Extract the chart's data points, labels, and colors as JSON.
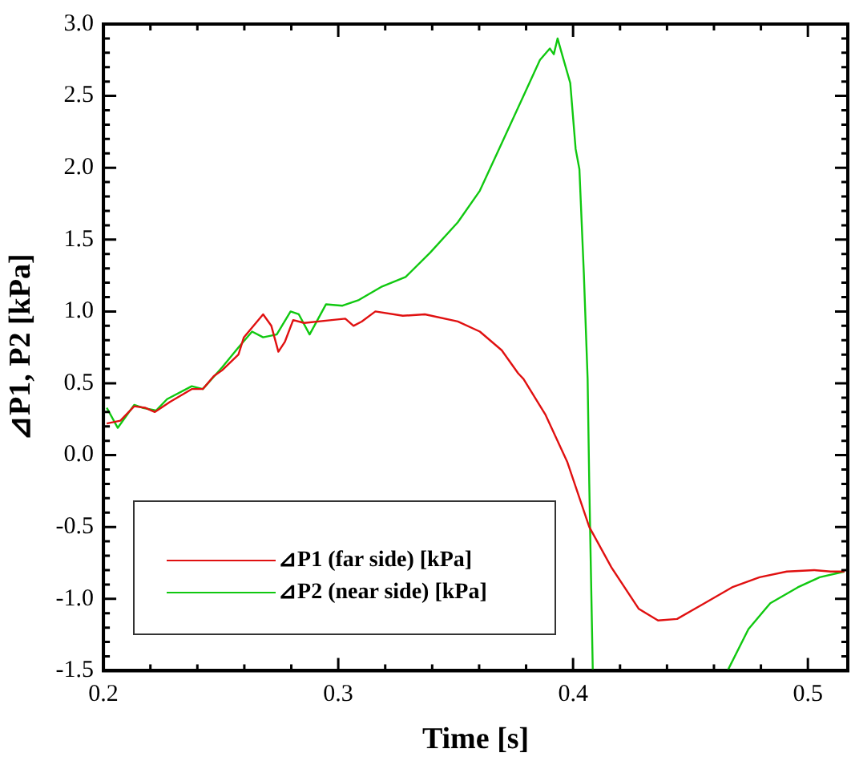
{
  "chart_data": {
    "type": "line",
    "xlabel": "Time [s]",
    "ylabel": "⊿P1, P2 [kPa]",
    "xlim": [
      0.2,
      0.517
    ],
    "xticks": [
      {
        "value": 0.2,
        "label": "0.2"
      },
      {
        "value": 0.22,
        "label": null
      },
      {
        "value": 0.24,
        "label": null
      },
      {
        "value": 0.26,
        "label": null
      },
      {
        "value": 0.28,
        "label": null
      },
      {
        "value": 0.3,
        "label": "0.3"
      },
      {
        "value": 0.32,
        "label": null
      },
      {
        "value": 0.34,
        "label": null
      },
      {
        "value": 0.36,
        "label": null
      },
      {
        "value": 0.38,
        "label": null
      },
      {
        "value": 0.4,
        "label": "0.4"
      },
      {
        "value": 0.42,
        "label": null
      },
      {
        "value": 0.44,
        "label": null
      },
      {
        "value": 0.46,
        "label": null
      },
      {
        "value": 0.48,
        "label": null
      },
      {
        "value": 0.5,
        "label": "0.5"
      }
    ],
    "ylim": [
      -1.5,
      3.0
    ],
    "yticks": [
      {
        "value": -1.5,
        "label": "-1.5"
      },
      {
        "value": -1.4,
        "label": null
      },
      {
        "value": -1.3,
        "label": null
      },
      {
        "value": -1.2,
        "label": null
      },
      {
        "value": -1.1,
        "label": null
      },
      {
        "value": -1.0,
        "label": "-1.0"
      },
      {
        "value": -0.9,
        "label": null
      },
      {
        "value": -0.8,
        "label": null
      },
      {
        "value": -0.7,
        "label": null
      },
      {
        "value": -0.6,
        "label": null
      },
      {
        "value": -0.5,
        "label": "-0.5"
      },
      {
        "value": -0.4,
        "label": null
      },
      {
        "value": -0.3,
        "label": null
      },
      {
        "value": -0.2,
        "label": null
      },
      {
        "value": -0.1,
        "label": null
      },
      {
        "value": 0,
        "label": "0.0"
      },
      {
        "value": 0.1,
        "label": null
      },
      {
        "value": 0.2,
        "label": null
      },
      {
        "value": 0.3,
        "label": null
      },
      {
        "value": 0.4,
        "label": null
      },
      {
        "value": 0.5,
        "label": "0.5"
      },
      {
        "value": 0.6,
        "label": null
      },
      {
        "value": 0.7,
        "label": null
      },
      {
        "value": 0.8,
        "label": null
      },
      {
        "value": 0.9,
        "label": null
      },
      {
        "value": 1.0,
        "label": "1.0"
      },
      {
        "value": 1.1,
        "label": null
      },
      {
        "value": 1.2,
        "label": null
      },
      {
        "value": 1.3,
        "label": null
      },
      {
        "value": 1.4,
        "label": null
      },
      {
        "value": 1.5,
        "label": "1.5"
      },
      {
        "value": 1.6,
        "label": null
      },
      {
        "value": 1.7,
        "label": null
      },
      {
        "value": 1.8,
        "label": null
      },
      {
        "value": 1.9,
        "label": null
      },
      {
        "value": 2.0,
        "label": "2.0"
      },
      {
        "value": 2.1,
        "label": null
      },
      {
        "value": 2.2,
        "label": null
      },
      {
        "value": 2.3,
        "label": null
      },
      {
        "value": 2.4,
        "label": null
      },
      {
        "value": 2.5,
        "label": "2.5"
      },
      {
        "value": 2.6,
        "label": null
      },
      {
        "value": 2.7,
        "label": null
      },
      {
        "value": 2.8,
        "label": null
      },
      {
        "value": 2.9,
        "label": null
      },
      {
        "value": 3.0,
        "label": "3.0"
      }
    ],
    "grid": false,
    "legend": "bottom left",
    "marker": "none",
    "line_style": "solid",
    "series": [
      {
        "name": "⊿P1 (far side) [kPa]",
        "color": "#e01010",
        "x": [
          0.2014,
          0.2072,
          0.2131,
          0.2177,
          0.2219,
          0.2283,
          0.2376,
          0.2423,
          0.247,
          0.2505,
          0.2575,
          0.2598,
          0.268,
          0.2715,
          0.2745,
          0.2773,
          0.2808,
          0.2855,
          0.2972,
          0.303,
          0.3065,
          0.31,
          0.3158,
          0.3275,
          0.3369,
          0.3509,
          0.3603,
          0.3696,
          0.3766,
          0.3789,
          0.3883,
          0.3976,
          0.4069,
          0.4163,
          0.428,
          0.4362,
          0.4443,
          0.456,
          0.4677,
          0.4794,
          0.491,
          0.5027,
          0.5097,
          0.5156
        ],
        "values": [
          0.22,
          0.24,
          0.34,
          0.33,
          0.3,
          0.37,
          0.46,
          0.46,
          0.55,
          0.59,
          0.7,
          0.82,
          0.98,
          0.9,
          0.72,
          0.79,
          0.94,
          0.92,
          0.94,
          0.95,
          0.9,
          0.93,
          1.0,
          0.97,
          0.98,
          0.93,
          0.86,
          0.73,
          0.57,
          0.53,
          0.28,
          -0.05,
          -0.5,
          -0.78,
          -1.07,
          -1.15,
          -1.14,
          -1.03,
          -0.92,
          -0.85,
          -0.81,
          -0.8,
          -0.81,
          -0.81
        ]
      },
      {
        "name": "⊿P2 (near side) [kPa]",
        "color": "#10c810",
        "x": [
          0.2014,
          0.2061,
          0.2131,
          0.2166,
          0.2224,
          0.2271,
          0.2376,
          0.2423,
          0.2505,
          0.2575,
          0.2633,
          0.268,
          0.2738,
          0.2797,
          0.2832,
          0.2878,
          0.2948,
          0.3018,
          0.3088,
          0.3182,
          0.3287,
          0.3392,
          0.3509,
          0.3603,
          0.3696,
          0.3789,
          0.3859,
          0.3901,
          0.3918,
          0.3934,
          0.3953,
          0.3988,
          0.4011,
          0.4027,
          0.4046,
          0.4062,
          0.4069,
          0.4084,
          0.437,
          0.4658,
          0.4747,
          0.484,
          0.4957,
          0.505,
          0.5156
        ],
        "values": [
          0.33,
          0.19,
          0.35,
          0.33,
          0.31,
          0.39,
          0.48,
          0.46,
          0.61,
          0.75,
          0.86,
          0.82,
          0.84,
          1.0,
          0.98,
          0.84,
          1.05,
          1.04,
          1.08,
          1.17,
          1.24,
          1.41,
          1.62,
          1.84,
          2.17,
          2.5,
          2.75,
          2.83,
          2.79,
          2.9,
          2.79,
          2.59,
          2.13,
          1.99,
          1.26,
          0.53,
          -0.2,
          -1.5,
          null,
          -1.5,
          -1.21,
          -1.03,
          -0.92,
          -0.85,
          -0.81
        ]
      }
    ]
  }
}
